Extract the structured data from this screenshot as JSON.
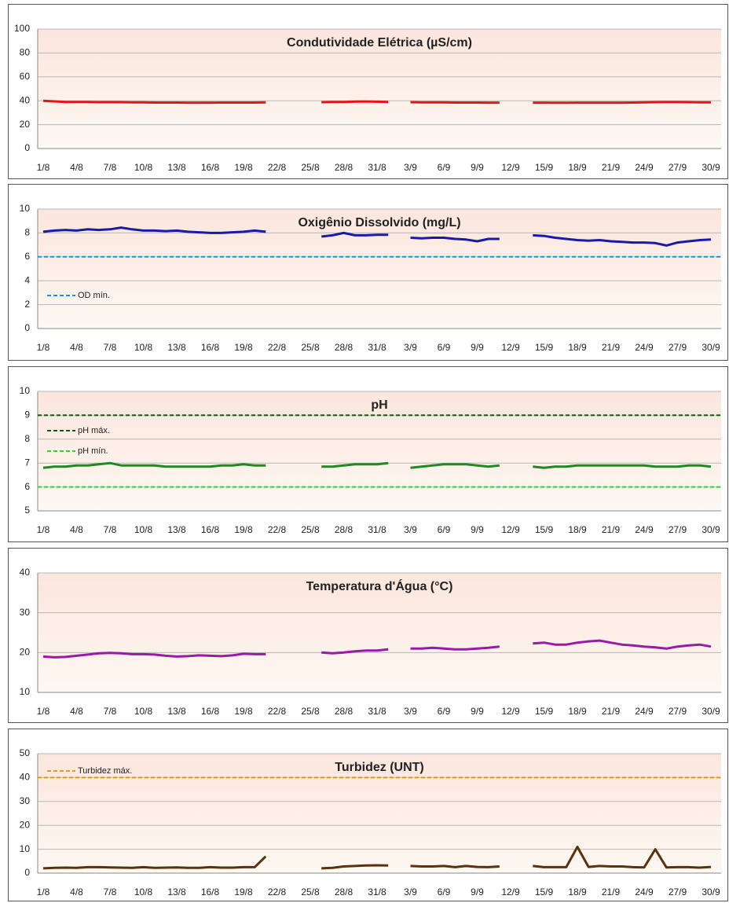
{
  "chart_data": [
    {
      "type": "line",
      "title": "Condutividade Elétrica (µS/cm)",
      "categories": [
        "1/8",
        null,
        null,
        "4/8",
        null,
        null,
        "7/8",
        null,
        null,
        "10/8",
        null,
        null,
        "13/8",
        null,
        null,
        "16/8",
        null,
        null,
        "19/8",
        null,
        null,
        "22/8",
        null,
        null,
        "25/8",
        null,
        null,
        "28/8",
        null,
        null,
        "31/8",
        null,
        null,
        "3/9",
        null,
        null,
        "6/9",
        null,
        null,
        "9/9",
        null,
        null,
        "12/9",
        null,
        null,
        "15/9",
        null,
        null,
        "18/9",
        null,
        null,
        "21/9",
        null,
        null,
        "24/9",
        null,
        null,
        "27/9",
        null,
        null,
        "30/9"
      ],
      "values": [
        40,
        39.5,
        39,
        39,
        39,
        38.8,
        38.8,
        38.8,
        38.6,
        38.6,
        38.5,
        38.5,
        38.5,
        38.4,
        38.4,
        38.4,
        38.5,
        38.5,
        38.5,
        38.5,
        38.6,
        null,
        null,
        null,
        null,
        38.8,
        39,
        39,
        39.3,
        39.4,
        39.2,
        39,
        null,
        38.8,
        38.6,
        38.6,
        38.6,
        38.5,
        38.5,
        38.5,
        38.4,
        38.4,
        null,
        null,
        38.4,
        38.4,
        38.3,
        38.3,
        38.4,
        38.4,
        38.4,
        38.4,
        38.4,
        38.5,
        38.6,
        38.8,
        38.9,
        38.9,
        38.8,
        38.7,
        38.7
      ],
      "color": "#e8141b",
      "ylim": [
        0,
        100
      ],
      "yticks": [
        0,
        20,
        40,
        60,
        80,
        100
      ],
      "grid": true,
      "hlines": []
    },
    {
      "type": "line",
      "title": "Oxigênio Dissolvido (mg/L)",
      "categories": [
        "1/8",
        null,
        null,
        "4/8",
        null,
        null,
        "7/8",
        null,
        null,
        "10/8",
        null,
        null,
        "13/8",
        null,
        null,
        "16/8",
        null,
        null,
        "19/8",
        null,
        null,
        "22/8",
        null,
        null,
        "25/8",
        null,
        null,
        "28/8",
        null,
        null,
        "31/8",
        null,
        null,
        "3/9",
        null,
        null,
        "6/9",
        null,
        null,
        "9/9",
        null,
        null,
        "12/9",
        null,
        null,
        "15/9",
        null,
        null,
        "18/9",
        null,
        null,
        "21/9",
        null,
        null,
        "24/9",
        null,
        null,
        "27/9",
        null,
        null,
        "30/9"
      ],
      "values": [
        8.1,
        8.2,
        8.25,
        8.2,
        8.3,
        8.25,
        8.3,
        8.45,
        8.3,
        8.2,
        8.2,
        8.15,
        8.2,
        8.1,
        8.05,
        8.0,
        8.0,
        8.05,
        8.1,
        8.2,
        8.1,
        null,
        null,
        null,
        null,
        7.7,
        7.8,
        8.0,
        7.8,
        7.8,
        7.85,
        7.85,
        null,
        7.6,
        7.55,
        7.6,
        7.6,
        7.5,
        7.45,
        7.3,
        7.5,
        7.5,
        null,
        null,
        7.8,
        7.75,
        7.6,
        7.5,
        7.4,
        7.35,
        7.4,
        7.3,
        7.25,
        7.2,
        7.2,
        7.15,
        6.95,
        7.2,
        7.3,
        7.4,
        7.45
      ],
      "color": "#1a1aa8",
      "ylim": [
        0,
        10
      ],
      "yticks": [
        0,
        2,
        4,
        6,
        8,
        10
      ],
      "grid": true,
      "hlines": [
        {
          "name": "OD mín.",
          "value": 6,
          "color": "#1e90e6"
        }
      ]
    },
    {
      "type": "line",
      "title": "pH",
      "categories": [
        "1/8",
        null,
        null,
        "4/8",
        null,
        null,
        "7/8",
        null,
        null,
        "10/8",
        null,
        null,
        "13/8",
        null,
        null,
        "16/8",
        null,
        null,
        "19/8",
        null,
        null,
        "22/8",
        null,
        null,
        "25/8",
        null,
        null,
        "28/8",
        null,
        null,
        "31/8",
        null,
        null,
        "3/9",
        null,
        null,
        "6/9",
        null,
        null,
        "9/9",
        null,
        null,
        "12/9",
        null,
        null,
        "15/9",
        null,
        null,
        "18/9",
        null,
        null,
        "21/9",
        null,
        null,
        "24/9",
        null,
        null,
        "27/9",
        null,
        null,
        "30/9"
      ],
      "values": [
        6.8,
        6.85,
        6.85,
        6.9,
        6.9,
        6.95,
        7.0,
        6.9,
        6.9,
        6.9,
        6.9,
        6.85,
        6.85,
        6.85,
        6.85,
        6.85,
        6.9,
        6.9,
        6.95,
        6.9,
        6.9,
        null,
        null,
        null,
        null,
        6.85,
        6.85,
        6.9,
        6.95,
        6.95,
        6.95,
        7.0,
        null,
        6.8,
        6.85,
        6.9,
        6.95,
        6.95,
        6.95,
        6.9,
        6.85,
        6.9,
        null,
        null,
        6.85,
        6.8,
        6.85,
        6.85,
        6.9,
        6.9,
        6.9,
        6.9,
        6.9,
        6.9,
        6.9,
        6.85,
        6.85,
        6.85,
        6.9,
        6.9,
        6.85
      ],
      "color": "#1f8a1f",
      "ylim": [
        5,
        10
      ],
      "yticks": [
        5,
        6,
        7,
        8,
        9,
        10
      ],
      "grid": true,
      "hlines": [
        {
          "name": "pH máx.",
          "value": 9,
          "color": "#0f5a0f"
        },
        {
          "name": "pH mín.",
          "value": 6,
          "color": "#44c844"
        }
      ]
    },
    {
      "type": "line",
      "title": "Temperatura d'Água (°C)",
      "categories": [
        "1/8",
        null,
        null,
        "4/8",
        null,
        null,
        "7/8",
        null,
        null,
        "10/8",
        null,
        null,
        "13/8",
        null,
        null,
        "16/8",
        null,
        null,
        "19/8",
        null,
        null,
        "22/8",
        null,
        null,
        "25/8",
        null,
        null,
        "28/8",
        null,
        null,
        "31/8",
        null,
        null,
        "3/9",
        null,
        null,
        "6/9",
        null,
        null,
        "9/9",
        null,
        null,
        "12/9",
        null,
        null,
        "15/9",
        null,
        null,
        "18/9",
        null,
        null,
        "21/9",
        null,
        null,
        "24/9",
        null,
        null,
        "27/9",
        null,
        null,
        "30/9"
      ],
      "values": [
        19,
        18.8,
        18.9,
        19.2,
        19.5,
        19.8,
        19.9,
        19.8,
        19.6,
        19.6,
        19.5,
        19.2,
        19.0,
        19.1,
        19.3,
        19.2,
        19.1,
        19.3,
        19.7,
        19.6,
        19.6,
        null,
        null,
        null,
        null,
        20,
        19.8,
        20,
        20.3,
        20.5,
        20.5,
        20.8,
        null,
        21,
        21,
        21.2,
        21,
        20.8,
        20.8,
        21,
        21.2,
        21.5,
        null,
        null,
        22.3,
        22.5,
        22,
        22,
        22.5,
        22.8,
        23,
        22.5,
        22,
        21.8,
        21.5,
        21.3,
        21,
        21.5,
        21.8,
        22,
        21.5
      ],
      "color": "#9a1aa8",
      "ylim": [
        10,
        40
      ],
      "yticks": [
        10,
        20,
        30,
        40
      ],
      "grid": true,
      "hlines": []
    },
    {
      "type": "line",
      "title": "Turbidez (UNT)",
      "categories": [
        "1/8",
        null,
        null,
        "4/8",
        null,
        null,
        "7/8",
        null,
        null,
        "10/8",
        null,
        null,
        "13/8",
        null,
        null,
        "16/8",
        null,
        null,
        "19/8",
        null,
        null,
        "22/8",
        null,
        null,
        "25/8",
        null,
        null,
        "28/8",
        null,
        null,
        "31/8",
        null,
        null,
        "3/9",
        null,
        null,
        "6/9",
        null,
        null,
        "9/9",
        null,
        null,
        "12/9",
        null,
        null,
        "15/9",
        null,
        null,
        "18/9",
        null,
        null,
        "21/9",
        null,
        null,
        "24/9",
        null,
        null,
        "27/9",
        null,
        null,
        "30/9"
      ],
      "values": [
        2,
        2.2,
        2.3,
        2.2,
        2.5,
        2.5,
        2.4,
        2.3,
        2.2,
        2.5,
        2.2,
        2.3,
        2.4,
        2.2,
        2.2,
        2.5,
        2.3,
        2.3,
        2.5,
        2.5,
        7,
        null,
        null,
        null,
        null,
        2,
        2.2,
        2.8,
        3,
        3.2,
        3.3,
        3.2,
        null,
        3,
        2.8,
        2.8,
        3,
        2.5,
        3,
        2.6,
        2.5,
        2.8,
        null,
        null,
        3,
        2.5,
        2.5,
        2.5,
        11,
        2.6,
        3,
        2.8,
        2.8,
        2.5,
        2.4,
        10,
        2.4,
        2.5,
        2.5,
        2.3,
        2.6
      ],
      "color": "#5a3210",
      "ylim": [
        0,
        50
      ],
      "yticks": [
        0,
        10,
        20,
        30,
        40,
        50
      ],
      "grid": true,
      "hlines": [
        {
          "name": "Turbidez máx.",
          "value": 40,
          "color": "#d4a017"
        }
      ]
    }
  ]
}
